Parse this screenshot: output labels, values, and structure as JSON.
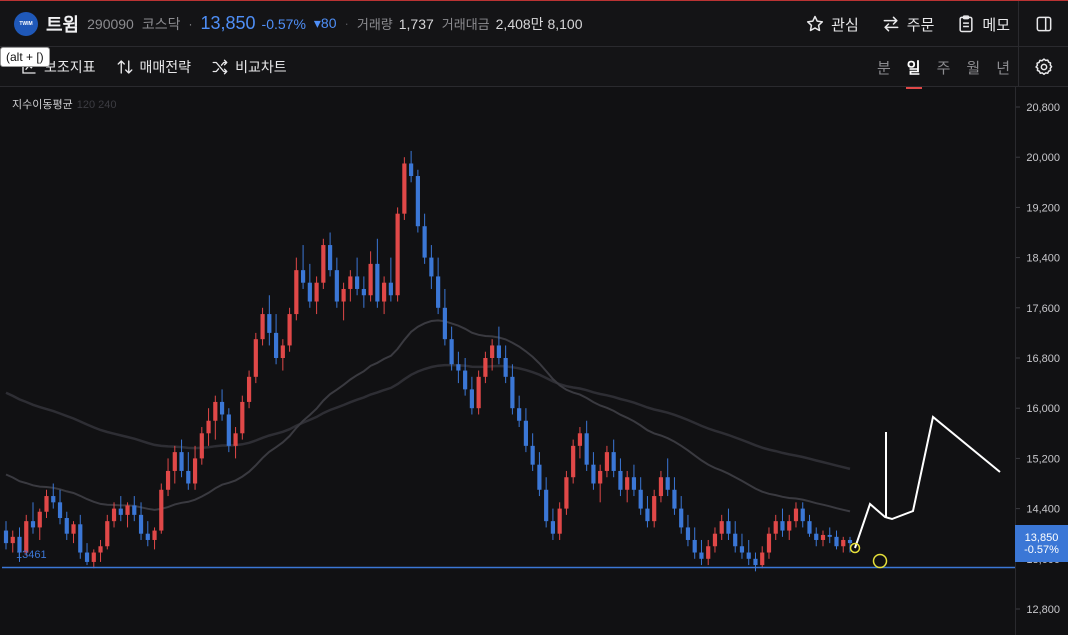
{
  "header": {
    "logo_text": "TWIM",
    "name": "트윔",
    "code": "290090",
    "market": "코스닥",
    "dot": "·",
    "price": "13,850",
    "change_pct": "-0.57%",
    "change": "▾80",
    "sep": "·",
    "volume_label": "거래량",
    "volume": "1,737",
    "amount_label": "거래대금",
    "amount": "2,408만 8,100",
    "actions": {
      "watch": "관심",
      "order": "주문",
      "memo": "메모"
    }
  },
  "toolbar": {
    "tooltip": "(alt + [)",
    "indicators": "보조지표",
    "strategy": "매매전략",
    "compare": "비교차트",
    "periods": [
      "분",
      "일",
      "주",
      "월",
      "년"
    ],
    "active_period": "일"
  },
  "chart": {
    "ma_label": "지수이동평균",
    "ma_periods_faded": "120 240",
    "hline_value": "13461",
    "current_price": "13,850",
    "current_pct": "-0.57%",
    "colors": {
      "up": "#e04848",
      "down": "#3b77d6",
      "hline": "#3b77d6",
      "drawing": "#ffffff",
      "marker": "#e6e03a"
    }
  },
  "chart_data": {
    "type": "candlestick",
    "y_ticks": [
      "20,800",
      "20,000",
      "19,200",
      "18,400",
      "17,600",
      "16,800",
      "16,000",
      "15,200",
      "14,400",
      "13,600",
      "12,800"
    ],
    "ylim": [
      12800,
      20800
    ],
    "horizontal_line": 13461,
    "last_close": 13850,
    "candles": [
      [
        14050,
        14200,
        13750,
        13850
      ],
      [
        13850,
        14050,
        13700,
        13950
      ],
      [
        13950,
        14100,
        13550,
        13700
      ],
      [
        13700,
        14300,
        13650,
        14200
      ],
      [
        14200,
        14500,
        14000,
        14100
      ],
      [
        14100,
        14400,
        13900,
        14350
      ],
      [
        14350,
        14700,
        14250,
        14600
      ],
      [
        14600,
        14800,
        14400,
        14500
      ],
      [
        14500,
        14700,
        14150,
        14250
      ],
      [
        14250,
        14350,
        13900,
        14000
      ],
      [
        14000,
        14200,
        13850,
        14150
      ],
      [
        14150,
        14300,
        13600,
        13700
      ],
      [
        13700,
        13850,
        13500,
        13550
      ],
      [
        13550,
        13750,
        13450,
        13700
      ],
      [
        13700,
        13900,
        13550,
        13800
      ],
      [
        13800,
        14300,
        13750,
        14200
      ],
      [
        14200,
        14500,
        14100,
        14400
      ],
      [
        14400,
        14600,
        14200,
        14300
      ],
      [
        14300,
        14500,
        14100,
        14450
      ],
      [
        14450,
        14600,
        14200,
        14300
      ],
      [
        14300,
        14500,
        13900,
        14000
      ],
      [
        14000,
        14200,
        13800,
        13900
      ],
      [
        13900,
        14100,
        13750,
        14050
      ],
      [
        14050,
        14800,
        14000,
        14700
      ],
      [
        14700,
        15200,
        14600,
        15000
      ],
      [
        15000,
        15400,
        14800,
        15300
      ],
      [
        15300,
        15500,
        14900,
        15000
      ],
      [
        15000,
        15300,
        14700,
        14800
      ],
      [
        14800,
        15400,
        14700,
        15200
      ],
      [
        15200,
        15700,
        15100,
        15600
      ],
      [
        15600,
        16000,
        15400,
        15800
      ],
      [
        15800,
        16200,
        15500,
        16100
      ],
      [
        16100,
        16300,
        15800,
        15900
      ],
      [
        15900,
        16000,
        15300,
        15400
      ],
      [
        15400,
        15700,
        15200,
        15600
      ],
      [
        15600,
        16200,
        15500,
        16100
      ],
      [
        16100,
        16600,
        16000,
        16500
      ],
      [
        16500,
        17200,
        16400,
        17100
      ],
      [
        17100,
        17600,
        17000,
        17500
      ],
      [
        17500,
        17800,
        17000,
        17200
      ],
      [
        17200,
        17500,
        16700,
        16800
      ],
      [
        16800,
        17100,
        16600,
        17000
      ],
      [
        17000,
        17600,
        16900,
        17500
      ],
      [
        17500,
        18400,
        17400,
        18200
      ],
      [
        18200,
        18600,
        17900,
        18000
      ],
      [
        18000,
        18300,
        17600,
        17700
      ],
      [
        17700,
        18100,
        17500,
        18000
      ],
      [
        18000,
        18700,
        17900,
        18600
      ],
      [
        18600,
        18800,
        18100,
        18200
      ],
      [
        18200,
        18400,
        17600,
        17700
      ],
      [
        17700,
        18000,
        17400,
        17900
      ],
      [
        17900,
        18200,
        17700,
        18100
      ],
      [
        18100,
        18400,
        17800,
        17900
      ],
      [
        17900,
        18100,
        17600,
        17800
      ],
      [
        17800,
        18500,
        17700,
        18300
      ],
      [
        18300,
        18700,
        17600,
        17700
      ],
      [
        17700,
        18100,
        17500,
        18000
      ],
      [
        18000,
        18400,
        17700,
        17800
      ],
      [
        17800,
        19200,
        17700,
        19100
      ],
      [
        19100,
        20000,
        19000,
        19900
      ],
      [
        19900,
        20100,
        19600,
        19700
      ],
      [
        19700,
        19800,
        18800,
        18900
      ],
      [
        18900,
        19100,
        18300,
        18400
      ],
      [
        18400,
        18600,
        17900,
        18100
      ],
      [
        18100,
        18400,
        17500,
        17600
      ],
      [
        17600,
        17900,
        17000,
        17100
      ],
      [
        17100,
        17300,
        16600,
        16700
      ],
      [
        16700,
        16900,
        16400,
        16600
      ],
      [
        16600,
        16800,
        16200,
        16300
      ],
      [
        16300,
        16500,
        15900,
        16000
      ],
      [
        16000,
        16600,
        15900,
        16500
      ],
      [
        16500,
        16900,
        16400,
        16800
      ],
      [
        16800,
        17100,
        16600,
        17000
      ],
      [
        17000,
        17300,
        16700,
        16800
      ],
      [
        16800,
        17000,
        16400,
        16500
      ],
      [
        16500,
        16700,
        15900,
        16000
      ],
      [
        16000,
        16200,
        15700,
        15800
      ],
      [
        15800,
        16000,
        15300,
        15400
      ],
      [
        15400,
        15600,
        15000,
        15100
      ],
      [
        15100,
        15300,
        14600,
        14700
      ],
      [
        14700,
        14900,
        14100,
        14200
      ],
      [
        14200,
        14400,
        13900,
        14000
      ],
      [
        14000,
        14500,
        13900,
        14400
      ],
      [
        14400,
        15000,
        14300,
        14900
      ],
      [
        14900,
        15500,
        14800,
        15400
      ],
      [
        15400,
        15700,
        15200,
        15600
      ],
      [
        15600,
        15800,
        15000,
        15100
      ],
      [
        15100,
        15300,
        14700,
        14800
      ],
      [
        14800,
        15100,
        14500,
        15000
      ],
      [
        15000,
        15400,
        14900,
        15300
      ],
      [
        15300,
        15500,
        14900,
        15000
      ],
      [
        15000,
        15200,
        14600,
        14700
      ],
      [
        14700,
        15000,
        14500,
        14900
      ],
      [
        14900,
        15100,
        14600,
        14700
      ],
      [
        14700,
        14900,
        14300,
        14400
      ],
      [
        14400,
        14600,
        14100,
        14200
      ],
      [
        14200,
        14700,
        14100,
        14600
      ],
      [
        14600,
        15000,
        14500,
        14900
      ],
      [
        14900,
        15200,
        14600,
        14700
      ],
      [
        14700,
        14900,
        14300,
        14400
      ],
      [
        14400,
        14600,
        14000,
        14100
      ],
      [
        14100,
        14300,
        13800,
        13900
      ],
      [
        13900,
        14100,
        13600,
        13700
      ],
      [
        13700,
        13900,
        13500,
        13600
      ],
      [
        13600,
        13900,
        13500,
        13800
      ],
      [
        13800,
        14100,
        13700,
        14000
      ],
      [
        14000,
        14300,
        13900,
        14200
      ],
      [
        14200,
        14400,
        13900,
        14000
      ],
      [
        14000,
        14200,
        13700,
        13800
      ],
      [
        13800,
        14000,
        13600,
        13700
      ],
      [
        13700,
        13900,
        13500,
        13600
      ],
      [
        13600,
        13700,
        13400,
        13500
      ],
      [
        13500,
        13800,
        13450,
        13700
      ],
      [
        13700,
        14100,
        13600,
        14000
      ],
      [
        14000,
        14300,
        13900,
        14200
      ],
      [
        14200,
        14400,
        13950,
        14050
      ],
      [
        14050,
        14300,
        13900,
        14200
      ],
      [
        14200,
        14500,
        14100,
        14400
      ],
      [
        14400,
        14500,
        14100,
        14200
      ],
      [
        14200,
        14300,
        13950,
        14000
      ],
      [
        14000,
        14100,
        13800,
        13900
      ],
      [
        13900,
        14050,
        13800,
        13980
      ],
      [
        13980,
        14100,
        13850,
        13950
      ],
      [
        13950,
        14050,
        13750,
        13800
      ],
      [
        13800,
        13950,
        13700,
        13900
      ],
      [
        13900,
        13950,
        13700,
        13850
      ]
    ]
  }
}
